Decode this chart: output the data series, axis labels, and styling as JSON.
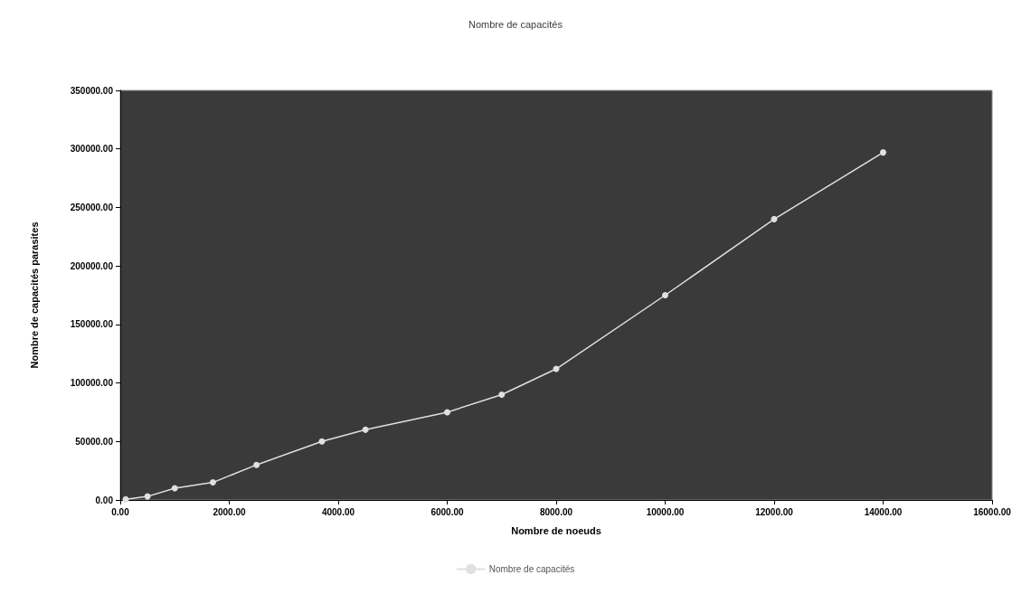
{
  "chart_data": {
    "type": "line",
    "title": "Nombre de capacités",
    "xlabel": "Nombre de noeuds",
    "ylabel": "Nombre de capacités parasites",
    "x": [
      100,
      500,
      1000,
      1700,
      2500,
      3700,
      4500,
      6000,
      7000,
      8000,
      10000,
      12000,
      14000
    ],
    "series": [
      {
        "name": "Nombre de capacités",
        "color": "#e0e0e0",
        "values": [
          500,
          3000,
          10000,
          15000,
          30000,
          50000,
          60000,
          75000,
          90000,
          112000,
          175000,
          240000,
          297000
        ]
      }
    ],
    "xlim": [
      0,
      16000
    ],
    "xticks": [
      {
        "value": 0,
        "label": "0.00"
      },
      {
        "value": 2000,
        "label": "2000.00"
      },
      {
        "value": 4000,
        "label": "4000.00"
      },
      {
        "value": 6000,
        "label": "6000.00"
      },
      {
        "value": 8000,
        "label": "8000.00"
      },
      {
        "value": 10000,
        "label": "10000.00"
      },
      {
        "value": 12000,
        "label": "12000.00"
      },
      {
        "value": 14000,
        "label": "14000.00"
      },
      {
        "value": 16000,
        "label": "16000.00"
      }
    ],
    "ylim": [
      0,
      350000
    ],
    "yticks": [
      {
        "value": 0,
        "label": "0.00"
      },
      {
        "value": 50000,
        "label": "50000.00"
      },
      {
        "value": 100000,
        "label": "100000.00"
      },
      {
        "value": 150000,
        "label": "150000.00"
      },
      {
        "value": 200000,
        "label": "200000.00"
      },
      {
        "value": 250000,
        "label": "250000.00"
      },
      {
        "value": 300000,
        "label": "300000.00"
      },
      {
        "value": 350000,
        "label": "350000.00"
      }
    ],
    "legend": "bottom",
    "marker": "circle",
    "grid": false
  }
}
